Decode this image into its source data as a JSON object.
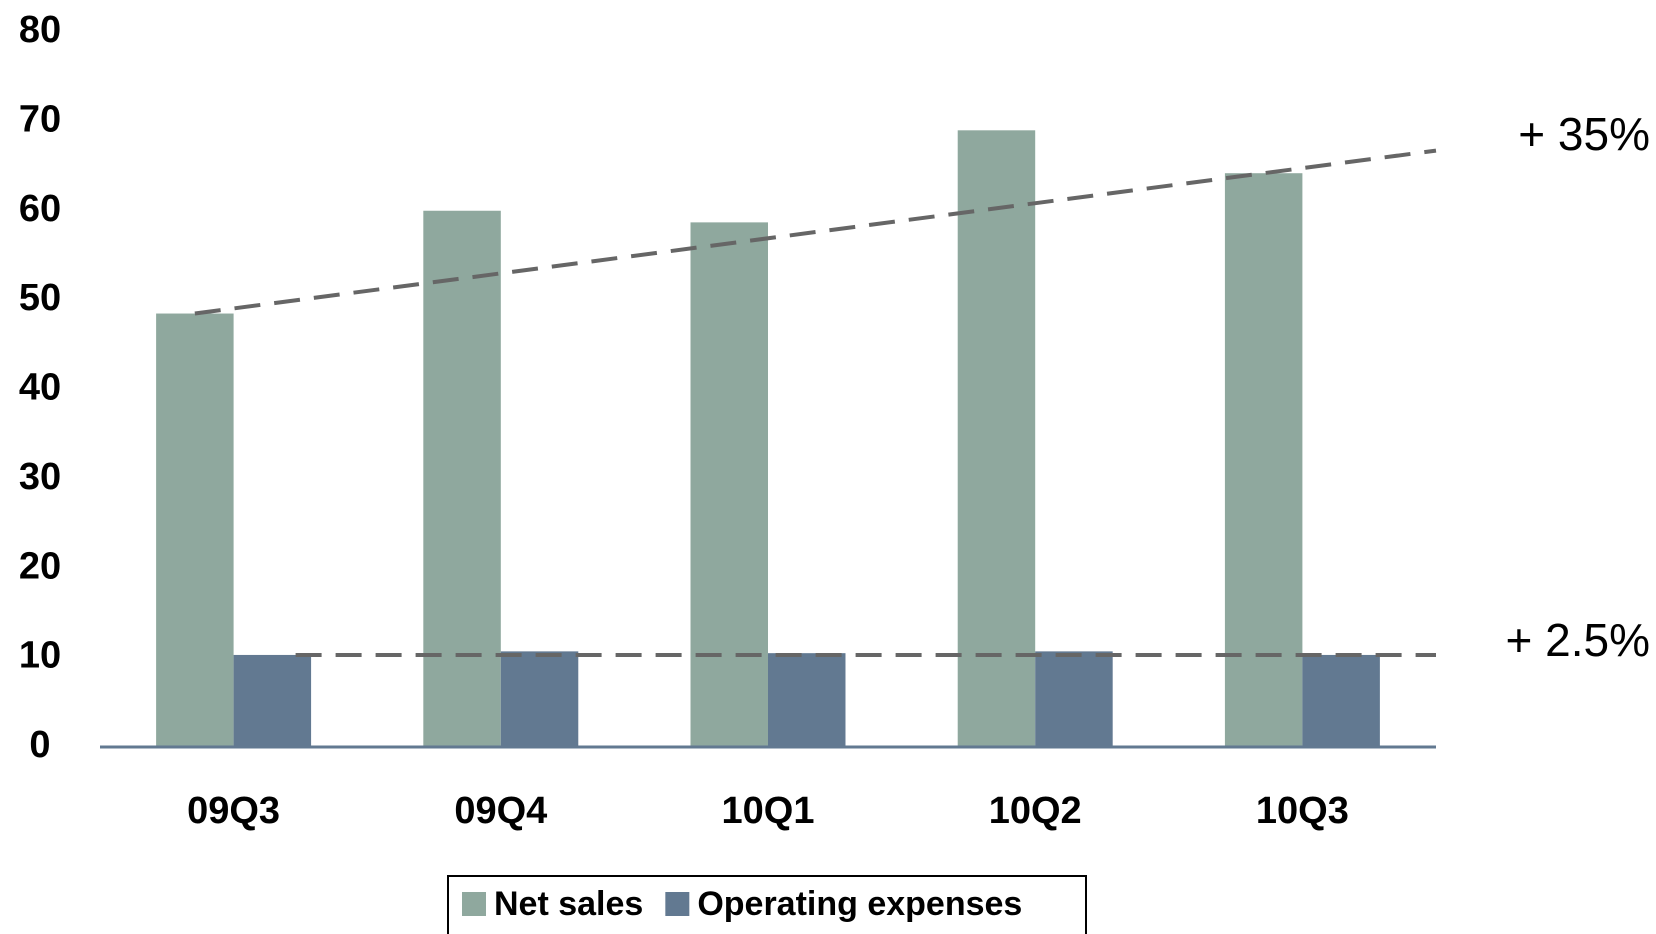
{
  "chart_data": {
    "type": "bar",
    "categories": [
      "09Q3",
      "09Q4",
      "10Q1",
      "10Q2",
      "10Q3"
    ],
    "series": [
      {
        "name": "Net sales",
        "color": "#8fa89e",
        "values": [
          48.5,
          60,
          58.7,
          69,
          64.2
        ]
      },
      {
        "name": "Operating expenses",
        "color": "#627991",
        "values": [
          10.3,
          10.7,
          10.5,
          10.7,
          10.3
        ]
      }
    ],
    "annotations": [
      "+ 35%",
      "+ 2.5%"
    ],
    "ylim": [
      0,
      80
    ],
    "yticks": [
      0,
      10,
      20,
      30,
      40,
      50,
      60,
      70,
      80
    ],
    "grid": false,
    "legend": "bottom"
  }
}
